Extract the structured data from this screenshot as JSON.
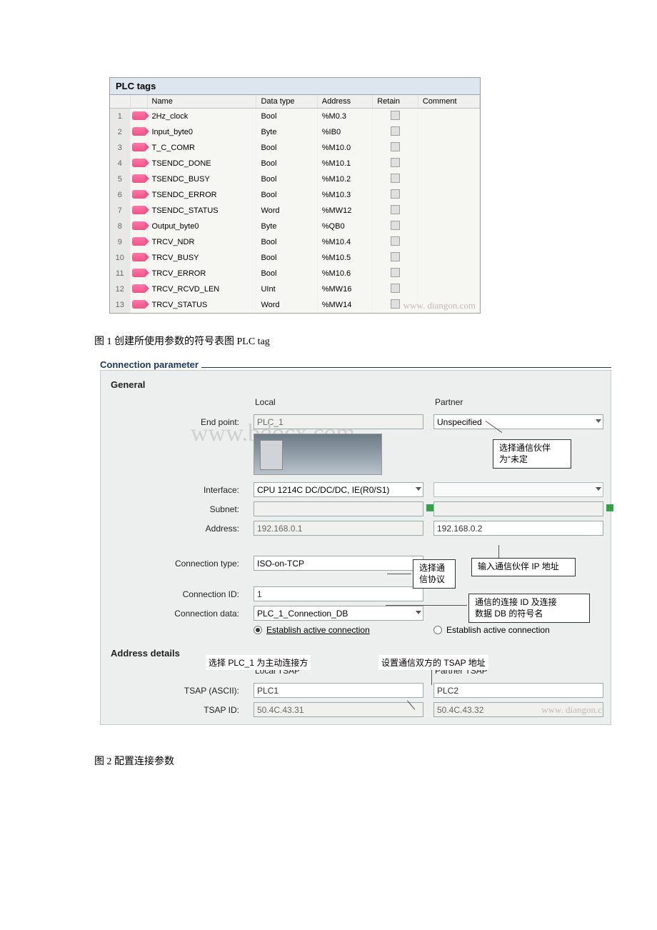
{
  "plc_tags": {
    "title": "PLC tags",
    "columns": [
      "",
      "",
      "Name",
      "Data type",
      "Address",
      "Retain",
      "Comment"
    ],
    "rows": [
      {
        "n": "1",
        "name": "2Hz_clock",
        "dt": "Bool",
        "addr": "%M0.3"
      },
      {
        "n": "2",
        "name": "Input_byte0",
        "dt": "Byte",
        "addr": "%IB0"
      },
      {
        "n": "3",
        "name": "T_C_COMR",
        "dt": "Bool",
        "addr": "%M10.0"
      },
      {
        "n": "4",
        "name": "TSENDC_DONE",
        "dt": "Bool",
        "addr": "%M10.1"
      },
      {
        "n": "5",
        "name": "TSENDC_BUSY",
        "dt": "Bool",
        "addr": "%M10.2"
      },
      {
        "n": "6",
        "name": "TSENDC_ERROR",
        "dt": "Bool",
        "addr": "%M10.3"
      },
      {
        "n": "7",
        "name": "TSENDC_STATUS",
        "dt": "Word",
        "addr": "%MW12"
      },
      {
        "n": "8",
        "name": "Output_byte0",
        "dt": "Byte",
        "addr": "%QB0"
      },
      {
        "n": "9",
        "name": "TRCV_NDR",
        "dt": "Bool",
        "addr": "%M10.4"
      },
      {
        "n": "10",
        "name": "TRCV_BUSY",
        "dt": "Bool",
        "addr": "%M10.5"
      },
      {
        "n": "11",
        "name": "TRCV_ERROR",
        "dt": "Bool",
        "addr": "%M10.6"
      },
      {
        "n": "12",
        "name": "TRCV_RCVD_LEN",
        "dt": "UInt",
        "addr": "%MW16"
      },
      {
        "n": "13",
        "name": "TRCV_STATUS",
        "dt": "Word",
        "addr": "%MW14"
      }
    ]
  },
  "caption1": "图 1 创建所使用参数的符号表图 PLC tag",
  "caption2": "图 2 配置连接参数",
  "conn": {
    "title": "Connection parameter",
    "general": "General",
    "local_hd": "Local",
    "partner_hd": "Partner",
    "endpoint_lbl": "End point:",
    "endpoint_local": "PLC_1",
    "endpoint_partner": "Unspecified",
    "interface_lbl": "Interface:",
    "interface_local": "CPU 1214C DC/DC/DC, IE(R0/S1)",
    "subnet_lbl": "Subnet:",
    "address_lbl": "Address:",
    "address_local": "192.168.0.1",
    "address_partner": "192.168.0.2",
    "conntype_lbl": "Connection type:",
    "conntype_val": "ISO-on-TCP",
    "connid_lbl": "Connection ID:",
    "connid_val": "1",
    "conndata_lbl": "Connection data:",
    "conndata_val": "PLC_1_Connection_DB",
    "estab": "Establish active connection",
    "addr_details": "Address details",
    "localtsap_hd": "Local TSAP",
    "partnertsap_hd": "Partner TSAP",
    "tsap_ascii_lbl": "TSAP (ASCII):",
    "tsap_ascii_local": "PLC1",
    "tsap_ascii_partner": "PLC2",
    "tsap_id_lbl": "TSAP ID:",
    "tsap_id_local": "50.4C.43.31",
    "tsap_id_partner": "50.4C.43.32"
  },
  "callouts": {
    "c1": "选择通信伙伴\n为“未定",
    "c2": "选择通\n信协议",
    "c3": "输入通信伙伴 IP 地址",
    "c4": "通信的连接 ID 及连接\n数据 DB 的符号名",
    "c5": "选择 PLC_1 为主动连接方",
    "c6": "设置通信双方的 TSAP 地址"
  },
  "watermarks": {
    "w1": "www. diangon.com",
    "w2": "www.bdocx.com",
    "w3": "www. diangon.c"
  }
}
